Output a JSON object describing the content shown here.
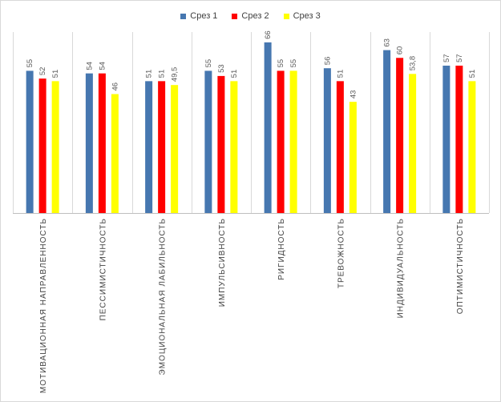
{
  "chart_data": {
    "type": "bar",
    "categories": [
      "МОТИВАЦИОННАЯ НАПРАВЛЕННОСТЬ",
      "ПЕССИМИСТИЧНОСТЬ",
      "ЭМОЦИОНАЛЬНАЯ ЛАБИЛЬНОСТЬ",
      "ИМПУЛЬСИВНОСТЬ",
      "РИГИДНОСТЬ",
      "ТРЕВОЖНОСТЬ",
      "ИНДИВИДУАЛЬНОСТЬ",
      "ОПТИМИСТИЧНОСТЬ"
    ],
    "series": [
      {
        "name": "Срез 1",
        "color": "#4677b0",
        "values": [
          55,
          54,
          51,
          55,
          66,
          56,
          63,
          57
        ],
        "labels": [
          "55",
          "54",
          "51",
          "55",
          "66",
          "56",
          "63",
          "57"
        ]
      },
      {
        "name": "Срез 2",
        "color": "#ff0000",
        "values": [
          52,
          54,
          51,
          53,
          55,
          51,
          60,
          57
        ],
        "labels": [
          "52",
          "54",
          "51",
          "53",
          "55",
          "51",
          "60",
          "57"
        ]
      },
      {
        "name": "Срез 3",
        "color": "#ffff00",
        "values": [
          51,
          46,
          49.5,
          51,
          55,
          43,
          53.8,
          51
        ],
        "labels": [
          "51",
          "46",
          "49,5",
          "51",
          "55",
          "43",
          "53,8",
          "51"
        ]
      }
    ],
    "ylim": [
      0,
      70
    ],
    "grid": "vertical",
    "legend_position": "top"
  }
}
